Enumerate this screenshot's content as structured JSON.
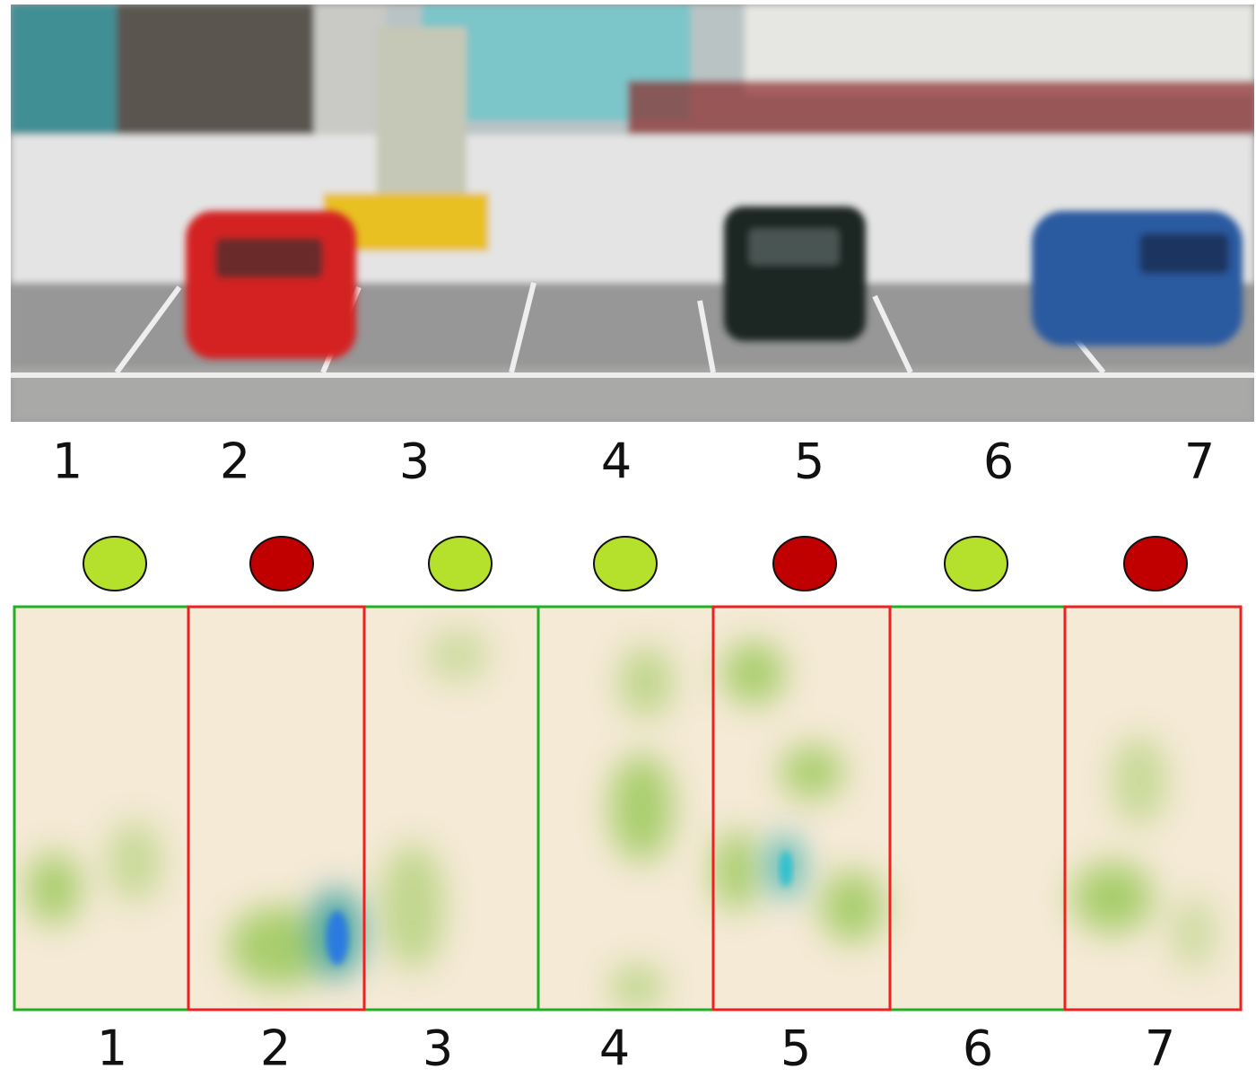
{
  "slots": [
    {
      "top_label": "1",
      "bottom_label": "1",
      "status_color": "#b5e02c",
      "border_color": "#22b022"
    },
    {
      "top_label": "2",
      "bottom_label": "2",
      "status_color": "#c00000",
      "border_color": "#f02020"
    },
    {
      "top_label": "3",
      "bottom_label": "3",
      "status_color": "#b5e02c",
      "border_color": "#22b022"
    },
    {
      "top_label": "4",
      "bottom_label": "4",
      "status_color": "#b5e02c",
      "border_color": "#22b022"
    },
    {
      "top_label": "5",
      "bottom_label": "5",
      "status_color": "#c00000",
      "border_color": "#f02020"
    },
    {
      "top_label": "6",
      "bottom_label": "6",
      "status_color": "#b5e02c",
      "border_color": "#22b022"
    },
    {
      "top_label": "7",
      "bottom_label": "7",
      "status_color": "#c00000",
      "border_color": "#f02020"
    }
  ]
}
